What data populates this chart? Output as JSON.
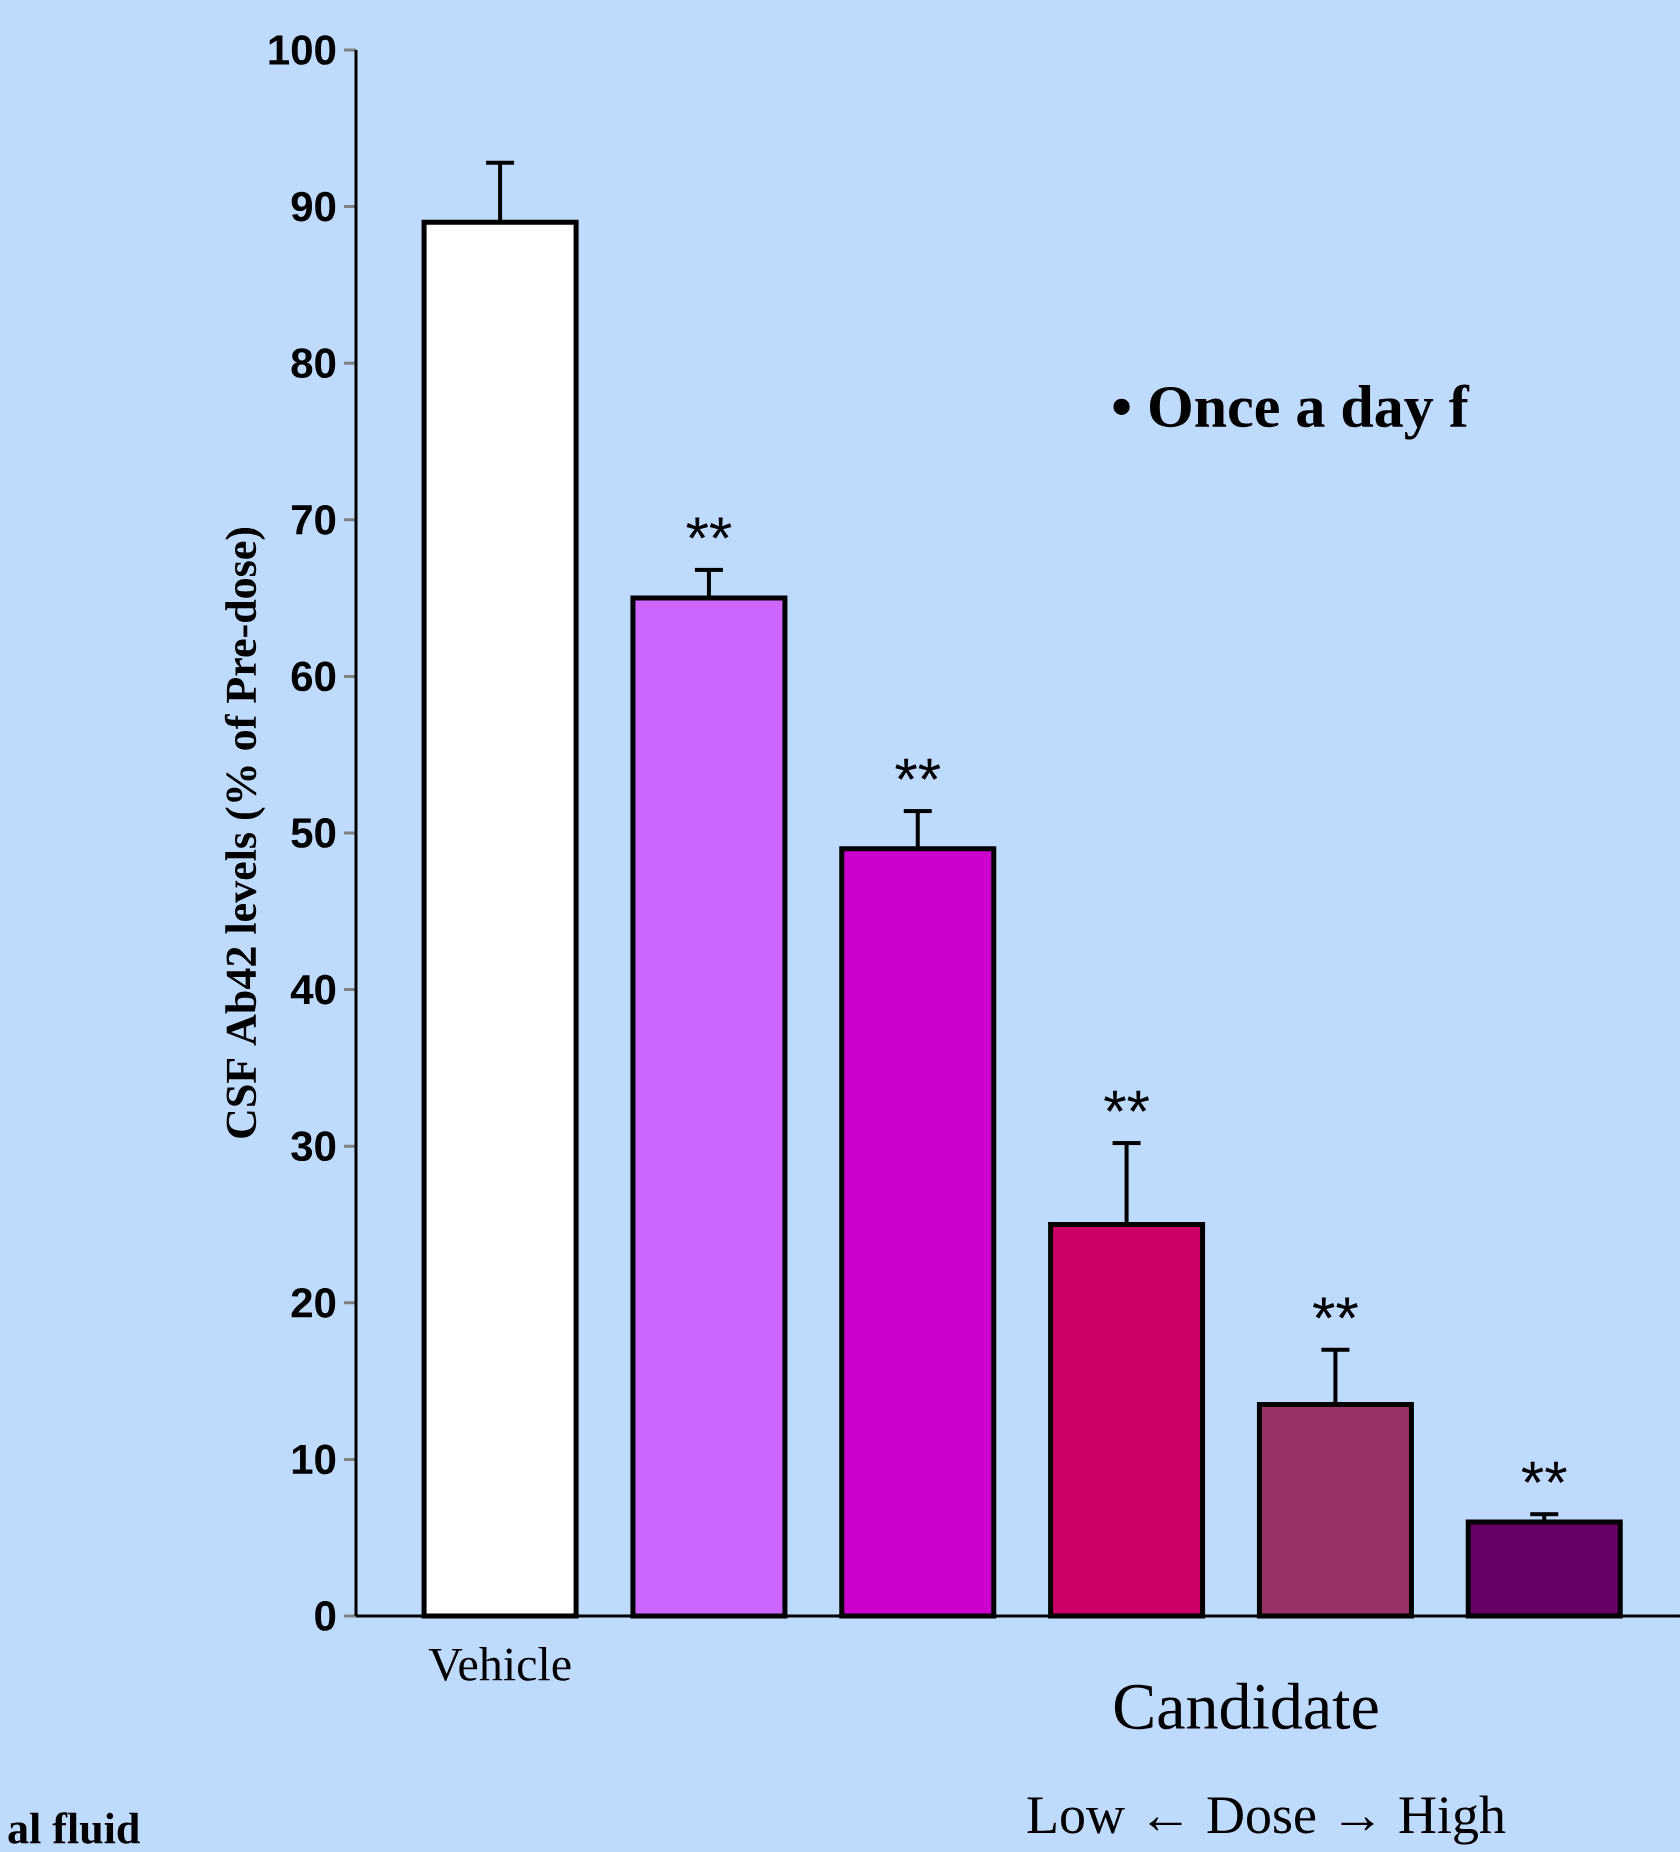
{
  "chart_data": {
    "type": "bar",
    "ylabel": "CSF Ab42 levels (% of Pre-dose)",
    "categories": [
      "Vehicle",
      null,
      null,
      null,
      null,
      null
    ],
    "values": [
      89,
      65,
      49,
      25,
      13.5,
      6
    ],
    "errors": [
      3.8,
      1.8,
      2.4,
      5.2,
      3.5,
      0.5
    ],
    "colors": [
      "#ffffff",
      "#cc66ff",
      "#cc00cc",
      "#cc0066",
      "#993366",
      "#660066"
    ],
    "ylim": [
      0,
      100
    ],
    "yticks": [
      0,
      10,
      20,
      30,
      40,
      50,
      60,
      70,
      80,
      90,
      100
    ],
    "annotations": [
      "**",
      "**",
      "**",
      "**",
      "**",
      "• Once a day f",
      "Candidate",
      "Low ← Dose → High",
      "al fluid"
    ]
  }
}
